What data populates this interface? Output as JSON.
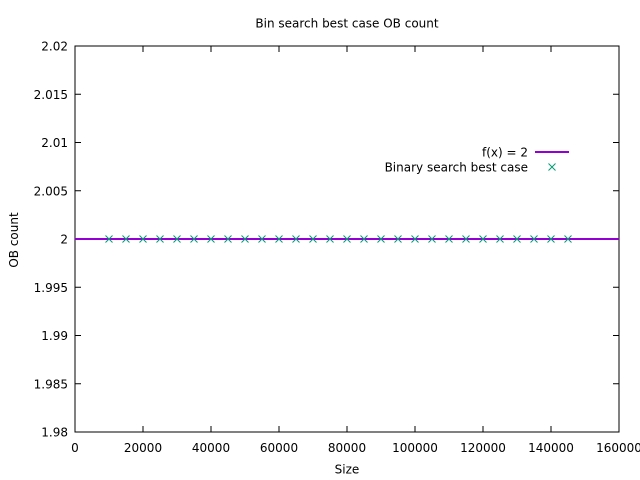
{
  "chart_data": {
    "type": "line",
    "title": "Bin search best case OB count",
    "xlabel": "Size",
    "ylabel": "OB count",
    "xlim": [
      0,
      160000
    ],
    "ylim": [
      1.98,
      2.02
    ],
    "x_ticks": [
      0,
      20000,
      40000,
      60000,
      80000,
      100000,
      120000,
      140000,
      160000
    ],
    "x_tick_labels": [
      "0",
      "20000",
      "40000",
      "60000",
      "80000",
      "100000",
      "120000",
      "140000",
      "160000"
    ],
    "y_ticks": [
      1.98,
      1.985,
      1.99,
      1.995,
      2,
      2.005,
      2.01,
      2.015,
      2.02
    ],
    "y_tick_labels": [
      "1.98",
      "1.985",
      "1.99",
      "1.995",
      "2",
      "2.005",
      "2.01",
      "2.015",
      "2.02"
    ],
    "grid": false,
    "legend_position": "top-right",
    "series": [
      {
        "name": "f(x) = 2",
        "kind": "line",
        "color": "#9400d3",
        "x": [
          0,
          160000
        ],
        "y": [
          2,
          2
        ]
      },
      {
        "name": "Binary search best case",
        "kind": "scatter",
        "marker": "x",
        "color": "#009e73",
        "x": [
          10000,
          15000,
          20000,
          25000,
          30000,
          35000,
          40000,
          45000,
          50000,
          55000,
          60000,
          65000,
          70000,
          75000,
          80000,
          85000,
          90000,
          95000,
          100000,
          105000,
          110000,
          115000,
          120000,
          125000,
          130000,
          135000,
          140000,
          145000
        ],
        "y": [
          2,
          2,
          2,
          2,
          2,
          2,
          2,
          2,
          2,
          2,
          2,
          2,
          2,
          2,
          2,
          2,
          2,
          2,
          2,
          2,
          2,
          2,
          2,
          2,
          2,
          2,
          2,
          2
        ]
      }
    ]
  }
}
